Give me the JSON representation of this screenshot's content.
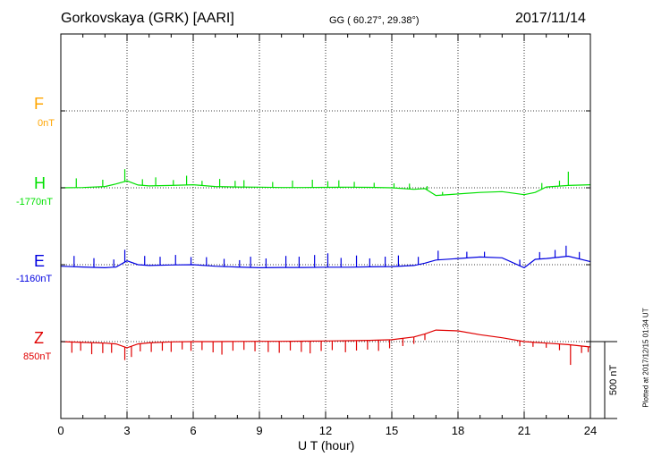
{
  "header": {
    "station": "Gorkovskaya (GRK)  [AARI]",
    "coords": "GG ( 60.27°,  29.38°)",
    "date": "2017/11/14"
  },
  "footer": {
    "plotted": "Plotted at 2017/12/15 01:34 UT",
    "scale_label": "500 nT"
  },
  "colors": {
    "F": "#ffa500",
    "H": "#00e000",
    "E": "#0000e0",
    "Z": "#e00000"
  },
  "chart_data": {
    "type": "line",
    "xlabel": "U T (hour)",
    "xlim": [
      0,
      24
    ],
    "x_ticks": [
      "0",
      "3",
      "6",
      "9",
      "12",
      "15",
      "18",
      "21",
      "24"
    ],
    "grid": true,
    "scale_bar_nT": 500,
    "series": [
      {
        "name": "F",
        "baseline": "0nT",
        "x": [],
        "values": []
      },
      {
        "name": "H",
        "baseline": "-1770nT",
        "x": [
          0,
          1,
          2,
          2.5,
          3,
          3.5,
          4,
          5,
          6,
          7,
          8,
          9,
          10,
          11,
          12,
          13,
          14,
          15,
          16,
          16.5,
          17,
          18,
          19,
          20,
          21,
          21.5,
          22,
          23,
          24
        ],
        "values": [
          -1770,
          -1768,
          -1762,
          -1745,
          -1725,
          -1752,
          -1758,
          -1755,
          -1750,
          -1762,
          -1765,
          -1766,
          -1768,
          -1768,
          -1767,
          -1766,
          -1767,
          -1770,
          -1780,
          -1775,
          -1820,
          -1810,
          -1800,
          -1795,
          -1815,
          -1800,
          -1765,
          -1755,
          -1750
        ],
        "spikes": [
          [
            0.7,
            60
          ],
          [
            1.9,
            45
          ],
          [
            2.9,
            80
          ],
          [
            3.7,
            40
          ],
          [
            4.3,
            55
          ],
          [
            5.1,
            35
          ],
          [
            5.7,
            60
          ],
          [
            6.4,
            30
          ],
          [
            7.2,
            50
          ],
          [
            7.9,
            40
          ],
          [
            8.3,
            45
          ],
          [
            9.6,
            35
          ],
          [
            10.5,
            45
          ],
          [
            11.4,
            50
          ],
          [
            12.1,
            40
          ],
          [
            12.6,
            45
          ],
          [
            13.3,
            35
          ],
          [
            14.2,
            30
          ],
          [
            15.1,
            30
          ],
          [
            15.8,
            35
          ],
          [
            16.6,
            25
          ],
          [
            17.3,
            20
          ],
          [
            21.8,
            40
          ],
          [
            22.6,
            35
          ],
          [
            23.0,
            90
          ]
        ]
      },
      {
        "name": "E",
        "baseline": "-1160nT",
        "x": [
          0,
          1,
          2,
          2.5,
          3,
          3.5,
          4,
          5,
          6,
          7,
          8,
          9,
          10,
          11,
          12,
          13,
          14,
          15,
          16,
          16.5,
          17,
          18,
          19,
          20,
          21,
          21.5,
          22,
          23,
          24
        ],
        "values": [
          -1170,
          -1175,
          -1180,
          -1175,
          -1135,
          -1160,
          -1165,
          -1162,
          -1160,
          -1170,
          -1175,
          -1180,
          -1178,
          -1178,
          -1176,
          -1176,
          -1174,
          -1172,
          -1165,
          -1150,
          -1130,
          -1120,
          -1110,
          -1115,
          -1180,
          -1125,
          -1120,
          -1105,
          -1140
        ],
        "spikes": [
          [
            0.6,
            70
          ],
          [
            1.5,
            60
          ],
          [
            2.4,
            50
          ],
          [
            2.9,
            80
          ],
          [
            3.8,
            60
          ],
          [
            4.5,
            55
          ],
          [
            5.2,
            65
          ],
          [
            5.9,
            50
          ],
          [
            6.6,
            55
          ],
          [
            7.4,
            50
          ],
          [
            8.1,
            45
          ],
          [
            8.6,
            70
          ],
          [
            9.3,
            60
          ],
          [
            10.2,
            75
          ],
          [
            10.8,
            70
          ],
          [
            11.5,
            80
          ],
          [
            12.1,
            90
          ],
          [
            12.7,
            60
          ],
          [
            13.4,
            75
          ],
          [
            14.0,
            55
          ],
          [
            14.7,
            65
          ],
          [
            15.3,
            70
          ],
          [
            16.2,
            50
          ],
          [
            17.1,
            60
          ],
          [
            18.4,
            40
          ],
          [
            19.2,
            35
          ],
          [
            20.8,
            40
          ],
          [
            21.7,
            45
          ],
          [
            22.4,
            50
          ],
          [
            22.9,
            70
          ],
          [
            23.5,
            45
          ]
        ]
      },
      {
        "name": "Z",
        "baseline": "850nT",
        "x": [
          0,
          1,
          2,
          2.5,
          3,
          3.5,
          4,
          5,
          6,
          7,
          8,
          9,
          10,
          11,
          12,
          13,
          14,
          15,
          16,
          16.5,
          17,
          18,
          19,
          20,
          21,
          21.5,
          22,
          23,
          24
        ],
        "values": [
          850,
          845,
          840,
          835,
          810,
          835,
          842,
          848,
          850,
          850,
          851,
          852,
          852,
          853,
          854,
          856,
          858,
          862,
          880,
          900,
          925,
          920,
          895,
          875,
          850,
          845,
          840,
          830,
          815
        ],
        "spikes": [
          [
            0.5,
            -70
          ],
          [
            0.9,
            -55
          ],
          [
            1.4,
            -75
          ],
          [
            1.9,
            -65
          ],
          [
            2.3,
            -60
          ],
          [
            2.9,
            -85
          ],
          [
            3.2,
            -70
          ],
          [
            3.6,
            -50
          ],
          [
            4.1,
            -60
          ],
          [
            4.6,
            -55
          ],
          [
            5.0,
            -65
          ],
          [
            5.5,
            -50
          ],
          [
            5.9,
            -60
          ],
          [
            6.4,
            -55
          ],
          [
            6.9,
            -70
          ],
          [
            7.3,
            -85
          ],
          [
            7.8,
            -60
          ],
          [
            8.3,
            -55
          ],
          [
            8.8,
            -65
          ],
          [
            9.4,
            -70
          ],
          [
            9.9,
            -75
          ],
          [
            10.4,
            -60
          ],
          [
            10.9,
            -70
          ],
          [
            11.3,
            -80
          ],
          [
            11.8,
            -65
          ],
          [
            12.3,
            -60
          ],
          [
            12.9,
            -75
          ],
          [
            13.4,
            -65
          ],
          [
            13.9,
            -60
          ],
          [
            14.4,
            -70
          ],
          [
            14.9,
            -55
          ],
          [
            15.5,
            -50
          ],
          [
            16.0,
            -45
          ],
          [
            16.5,
            -40
          ],
          [
            20.8,
            -35
          ],
          [
            21.4,
            -30
          ],
          [
            22.0,
            -30
          ],
          [
            22.6,
            -40
          ],
          [
            23.1,
            -130
          ],
          [
            23.6,
            -45
          ],
          [
            23.9,
            -35
          ]
        ]
      }
    ]
  }
}
